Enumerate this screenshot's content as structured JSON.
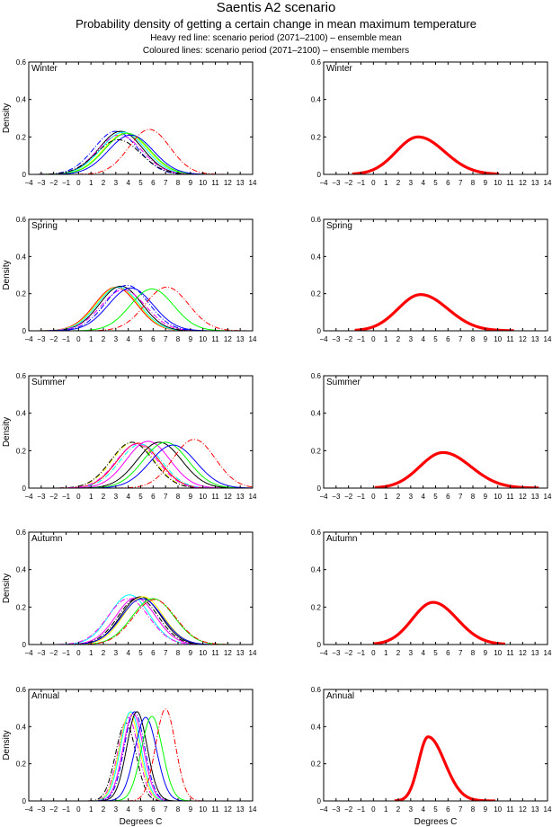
{
  "header": {
    "title": "Saentis A2 scenario",
    "subtitle": "Probability density of getting a certain change in mean maximum temperature",
    "legend_line_1": "Heavy red line: scenario period (2071–2100) – ensemble mean",
    "legend_line_2": "Coloured lines: scenario period (2071–2100) – ensemble members"
  },
  "chart_data": [
    {
      "type": "line",
      "panel": "members",
      "season": "Winter",
      "ylabel": "Density",
      "xlabel": "",
      "xlim": [
        -4,
        14
      ],
      "ylim": [
        0,
        0.6
      ],
      "xticks": [
        -4,
        -3,
        -2,
        -1,
        0,
        1,
        2,
        3,
        4,
        5,
        6,
        7,
        8,
        9,
        10,
        11,
        12,
        13,
        14
      ],
      "yticks": [
        0,
        0.2,
        0.4,
        0.6
      ],
      "series": [
        {
          "name": "member-1",
          "color": "#0000ff",
          "style": "dashdot",
          "mean": 3.0,
          "sd": 1.75,
          "peak": 0.23
        },
        {
          "name": "member-2",
          "color": "#000000",
          "style": "solid",
          "mean": 3.4,
          "sd": 1.75,
          "peak": 0.23
        },
        {
          "name": "member-3",
          "color": "#00ffff",
          "style": "solid",
          "mean": 3.6,
          "sd": 1.8,
          "peak": 0.225
        },
        {
          "name": "member-4",
          "color": "#ff00ff",
          "style": "dashdot",
          "mean": 3.3,
          "sd": 1.8,
          "peak": 0.21
        },
        {
          "name": "member-5",
          "color": "#ffff00",
          "style": "solid",
          "mean": 3.8,
          "sd": 1.8,
          "peak": 0.22
        },
        {
          "name": "member-6",
          "color": "#00ff00",
          "style": "solid",
          "mean": 3.9,
          "sd": 1.8,
          "peak": 0.22
        },
        {
          "name": "member-7",
          "color": "#0000ff",
          "style": "solid",
          "mean": 4.2,
          "sd": 1.8,
          "peak": 0.21
        },
        {
          "name": "member-8",
          "color": "#000000",
          "style": "dashdot",
          "mean": 3.2,
          "sd": 1.8,
          "peak": 0.185
        },
        {
          "name": "member-9",
          "color": "#ff0000",
          "style": "dashdot",
          "mean": 5.7,
          "sd": 1.65,
          "peak": 0.24
        }
      ]
    },
    {
      "type": "line",
      "panel": "mean",
      "season": "Winter",
      "xlim": [
        -4,
        14
      ],
      "ylim": [
        0,
        0.6
      ],
      "xticks": [
        -4,
        -3,
        -2,
        -1,
        0,
        1,
        2,
        3,
        4,
        5,
        6,
        7,
        8,
        9,
        10,
        11,
        12,
        13,
        14
      ],
      "yticks": [
        0,
        0.2,
        0.4,
        0.6
      ],
      "series": [
        {
          "name": "ensemble-mean",
          "color": "#ff0000",
          "style": "heavy",
          "mean": 3.6,
          "sd": 1.95,
          "peak": 0.2,
          "skew": 0.3,
          "range": [
            -1.7,
            10.1
          ]
        }
      ]
    },
    {
      "type": "line",
      "panel": "members",
      "season": "Spring",
      "ylabel": "Density",
      "xlim": [
        -4,
        14
      ],
      "ylim": [
        0,
        0.6
      ],
      "xticks": [
        -4,
        -3,
        -2,
        -1,
        0,
        1,
        2,
        3,
        4,
        5,
        6,
        7,
        8,
        9,
        10,
        11,
        12,
        13,
        14
      ],
      "yticks": [
        0,
        0.2,
        0.4,
        0.6
      ],
      "series": [
        {
          "name": "member-1",
          "color": "#ff0000",
          "style": "solid",
          "mean": 3.0,
          "sd": 1.7,
          "peak": 0.235
        },
        {
          "name": "member-2",
          "color": "#ffff00",
          "style": "solid",
          "mean": 3.1,
          "sd": 1.7,
          "peak": 0.235
        },
        {
          "name": "member-3",
          "color": "#00ffff",
          "style": "solid",
          "mean": 3.2,
          "sd": 1.7,
          "peak": 0.235
        },
        {
          "name": "member-4",
          "color": "#000000",
          "style": "solid",
          "mean": 3.4,
          "sd": 1.7,
          "peak": 0.24
        },
        {
          "name": "member-5",
          "color": "#ff00ff",
          "style": "dashdot",
          "mean": 3.6,
          "sd": 1.8,
          "peak": 0.22
        },
        {
          "name": "member-6",
          "color": "#0000ff",
          "style": "dashdot",
          "mean": 3.9,
          "sd": 1.75,
          "peak": 0.245
        },
        {
          "name": "member-7",
          "color": "#0000ff",
          "style": "solid",
          "mean": 4.2,
          "sd": 1.8,
          "peak": 0.23
        },
        {
          "name": "member-8",
          "color": "#00ff00",
          "style": "solid",
          "mean": 5.9,
          "sd": 1.75,
          "peak": 0.225
        },
        {
          "name": "member-9",
          "color": "#ff0000",
          "style": "dashdot",
          "mean": 7.1,
          "sd": 1.75,
          "peak": 0.235
        }
      ]
    },
    {
      "type": "line",
      "panel": "mean",
      "season": "Spring",
      "xlim": [
        -4,
        14
      ],
      "ylim": [
        0,
        0.6
      ],
      "xticks": [
        -4,
        -3,
        -2,
        -1,
        0,
        1,
        2,
        3,
        4,
        5,
        6,
        7,
        8,
        9,
        10,
        11,
        12,
        13,
        14
      ],
      "yticks": [
        0,
        0.2,
        0.4,
        0.6
      ],
      "series": [
        {
          "name": "ensemble-mean",
          "color": "#ff0000",
          "style": "heavy",
          "mean": 3.8,
          "sd": 2.0,
          "peak": 0.195,
          "skew": 0.3,
          "range": [
            -1.5,
            11.3
          ]
        }
      ]
    },
    {
      "type": "line",
      "panel": "members",
      "season": "Summer",
      "ylabel": "Density",
      "xlim": [
        -4,
        14
      ],
      "ylim": [
        0,
        0.6
      ],
      "xticks": [
        -4,
        -3,
        -2,
        -1,
        0,
        1,
        2,
        3,
        4,
        5,
        6,
        7,
        8,
        9,
        10,
        11,
        12,
        13,
        14
      ],
      "yticks": [
        0,
        0.2,
        0.4,
        0.6
      ],
      "series": [
        {
          "name": "member-1",
          "color": "#ffff00",
          "style": "dashdot",
          "mean": 4.4,
          "sd": 1.7,
          "peak": 0.245
        },
        {
          "name": "member-2",
          "color": "#000000",
          "style": "dashdot",
          "mean": 4.3,
          "sd": 1.7,
          "peak": 0.245
        },
        {
          "name": "member-3",
          "color": "#ff0000",
          "style": "solid",
          "mean": 4.8,
          "sd": 1.7,
          "peak": 0.24
        },
        {
          "name": "member-4",
          "color": "#00ffff",
          "style": "dashdot",
          "mean": 5.0,
          "sd": 1.7,
          "peak": 0.235
        },
        {
          "name": "member-5",
          "color": "#ff00ff",
          "style": "solid",
          "mean": 5.6,
          "sd": 1.75,
          "peak": 0.25
        },
        {
          "name": "member-6",
          "color": "#ff00ff",
          "style": "dashdot",
          "mean": 4.7,
          "sd": 1.7,
          "peak": 0.235
        },
        {
          "name": "member-7",
          "color": "#000000",
          "style": "solid",
          "mean": 6.5,
          "sd": 1.8,
          "peak": 0.245
        },
        {
          "name": "member-8",
          "color": "#00ff00",
          "style": "solid",
          "mean": 7.0,
          "sd": 1.8,
          "peak": 0.245
        },
        {
          "name": "member-9",
          "color": "#0000ff",
          "style": "solid",
          "mean": 7.6,
          "sd": 1.85,
          "peak": 0.23
        },
        {
          "name": "member-10",
          "color": "#ff0000",
          "style": "dashdot",
          "mean": 9.3,
          "sd": 1.7,
          "peak": 0.26
        }
      ]
    },
    {
      "type": "line",
      "panel": "mean",
      "season": "Summer",
      "xlim": [
        -4,
        14
      ],
      "ylim": [
        0,
        0.6
      ],
      "xticks": [
        -4,
        -3,
        -2,
        -1,
        0,
        1,
        2,
        3,
        4,
        5,
        6,
        7,
        8,
        9,
        10,
        11,
        12,
        13,
        14
      ],
      "yticks": [
        0,
        0.2,
        0.4,
        0.6
      ],
      "series": [
        {
          "name": "ensemble-mean",
          "color": "#ff0000",
          "style": "heavy",
          "mean": 5.6,
          "sd": 2.05,
          "peak": 0.19,
          "skew": 0.3,
          "range": [
            0.1,
            13.3
          ]
        }
      ]
    },
    {
      "type": "line",
      "panel": "members",
      "season": "Autumn",
      "ylabel": "Density",
      "xlim": [
        -4,
        14
      ],
      "ylim": [
        0,
        0.6
      ],
      "xticks": [
        -4,
        -3,
        -2,
        -1,
        0,
        1,
        2,
        3,
        4,
        5,
        6,
        7,
        8,
        9,
        10,
        11,
        12,
        13,
        14
      ],
      "yticks": [
        0,
        0.2,
        0.4,
        0.6
      ],
      "series": [
        {
          "name": "member-1",
          "color": "#00ffff",
          "style": "solid",
          "mean": 4.1,
          "sd": 1.6,
          "peak": 0.265
        },
        {
          "name": "member-2",
          "color": "#ff00ff",
          "style": "dashdot",
          "mean": 4.0,
          "sd": 1.65,
          "peak": 0.245
        },
        {
          "name": "member-3",
          "color": "#ff00ff",
          "style": "solid",
          "mean": 4.6,
          "sd": 1.6,
          "peak": 0.25
        },
        {
          "name": "member-4",
          "color": "#000000",
          "style": "dashdot",
          "mean": 4.8,
          "sd": 1.6,
          "peak": 0.25
        },
        {
          "name": "member-5",
          "color": "#000000",
          "style": "solid",
          "mean": 5.0,
          "sd": 1.6,
          "peak": 0.255
        },
        {
          "name": "member-6",
          "color": "#ffff00",
          "style": "solid",
          "mean": 5.2,
          "sd": 1.6,
          "peak": 0.255
        },
        {
          "name": "member-7",
          "color": "#0000ff",
          "style": "solid",
          "mean": 5.1,
          "sd": 1.65,
          "peak": 0.245
        },
        {
          "name": "member-8",
          "color": "#00ff00",
          "style": "solid",
          "mean": 6.0,
          "sd": 1.7,
          "peak": 0.245
        },
        {
          "name": "member-9",
          "color": "#ff0000",
          "style": "dashdot",
          "mean": 6.1,
          "sd": 1.7,
          "peak": 0.24
        }
      ]
    },
    {
      "type": "line",
      "panel": "mean",
      "season": "Autumn",
      "xlim": [
        -4,
        14
      ],
      "ylim": [
        0,
        0.6
      ],
      "xticks": [
        -4,
        -3,
        -2,
        -1,
        0,
        1,
        2,
        3,
        4,
        5,
        6,
        7,
        8,
        9,
        10,
        11,
        12,
        13,
        14
      ],
      "yticks": [
        0,
        0.2,
        0.4,
        0.6
      ],
      "series": [
        {
          "name": "ensemble-mean",
          "color": "#ff0000",
          "style": "heavy",
          "mean": 4.8,
          "sd": 1.8,
          "peak": 0.225,
          "skew": 0.25,
          "range": [
            0.0,
            10.6
          ]
        }
      ]
    },
    {
      "type": "line",
      "panel": "members",
      "season": "Annual",
      "ylabel": "Density",
      "xlabel": "Degrees C",
      "xlim": [
        -4,
        14
      ],
      "ylim": [
        0,
        0.6
      ],
      "xticks": [
        -4,
        -3,
        -2,
        -1,
        0,
        1,
        2,
        3,
        4,
        5,
        6,
        7,
        8,
        9,
        10,
        11,
        12,
        13,
        14
      ],
      "yticks": [
        0,
        0.2,
        0.4,
        0.6
      ],
      "series": [
        {
          "name": "member-1",
          "color": "#000000",
          "style": "dashdot",
          "mean": 3.8,
          "sd": 0.82,
          "peak": 0.42
        },
        {
          "name": "member-2",
          "color": "#ff00ff",
          "style": "dashdot",
          "mean": 4.0,
          "sd": 0.82,
          "peak": 0.45
        },
        {
          "name": "member-3",
          "color": "#ffff00",
          "style": "solid",
          "mean": 4.1,
          "sd": 0.82,
          "peak": 0.47
        },
        {
          "name": "member-4",
          "color": "#00ffff",
          "style": "solid",
          "mean": 4.2,
          "sd": 0.82,
          "peak": 0.48
        },
        {
          "name": "member-5",
          "color": "#ff00ff",
          "style": "solid",
          "mean": 4.4,
          "sd": 0.82,
          "peak": 0.47
        },
        {
          "name": "member-6",
          "color": "#0000ff",
          "style": "dashdot",
          "mean": 4.5,
          "sd": 0.82,
          "peak": 0.48
        },
        {
          "name": "member-7",
          "color": "#000000",
          "style": "solid",
          "mean": 4.7,
          "sd": 0.82,
          "peak": 0.48
        },
        {
          "name": "member-8",
          "color": "#0000ff",
          "style": "solid",
          "mean": 5.4,
          "sd": 0.88,
          "peak": 0.45
        },
        {
          "name": "member-9",
          "color": "#00ff00",
          "style": "solid",
          "mean": 5.9,
          "sd": 0.85,
          "peak": 0.455
        },
        {
          "name": "member-10",
          "color": "#ff0000",
          "style": "dashdot",
          "mean": 7.0,
          "sd": 0.8,
          "peak": 0.495
        }
      ]
    },
    {
      "type": "line",
      "panel": "mean",
      "season": "Annual",
      "xlabel": "Degrees C",
      "xlim": [
        -4,
        14
      ],
      "ylim": [
        0,
        0.6
      ],
      "xticks": [
        -4,
        -3,
        -2,
        -1,
        0,
        1,
        2,
        3,
        4,
        5,
        6,
        7,
        8,
        9,
        10,
        11,
        12,
        13,
        14
      ],
      "yticks": [
        0,
        0.2,
        0.4,
        0.6
      ],
      "series": [
        {
          "name": "ensemble-mean",
          "color": "#ff0000",
          "style": "heavy",
          "mean": 4.4,
          "sd": 1.05,
          "peak": 0.345,
          "skew": 0.9,
          "range": [
            1.7,
            9.8
          ]
        }
      ]
    }
  ]
}
